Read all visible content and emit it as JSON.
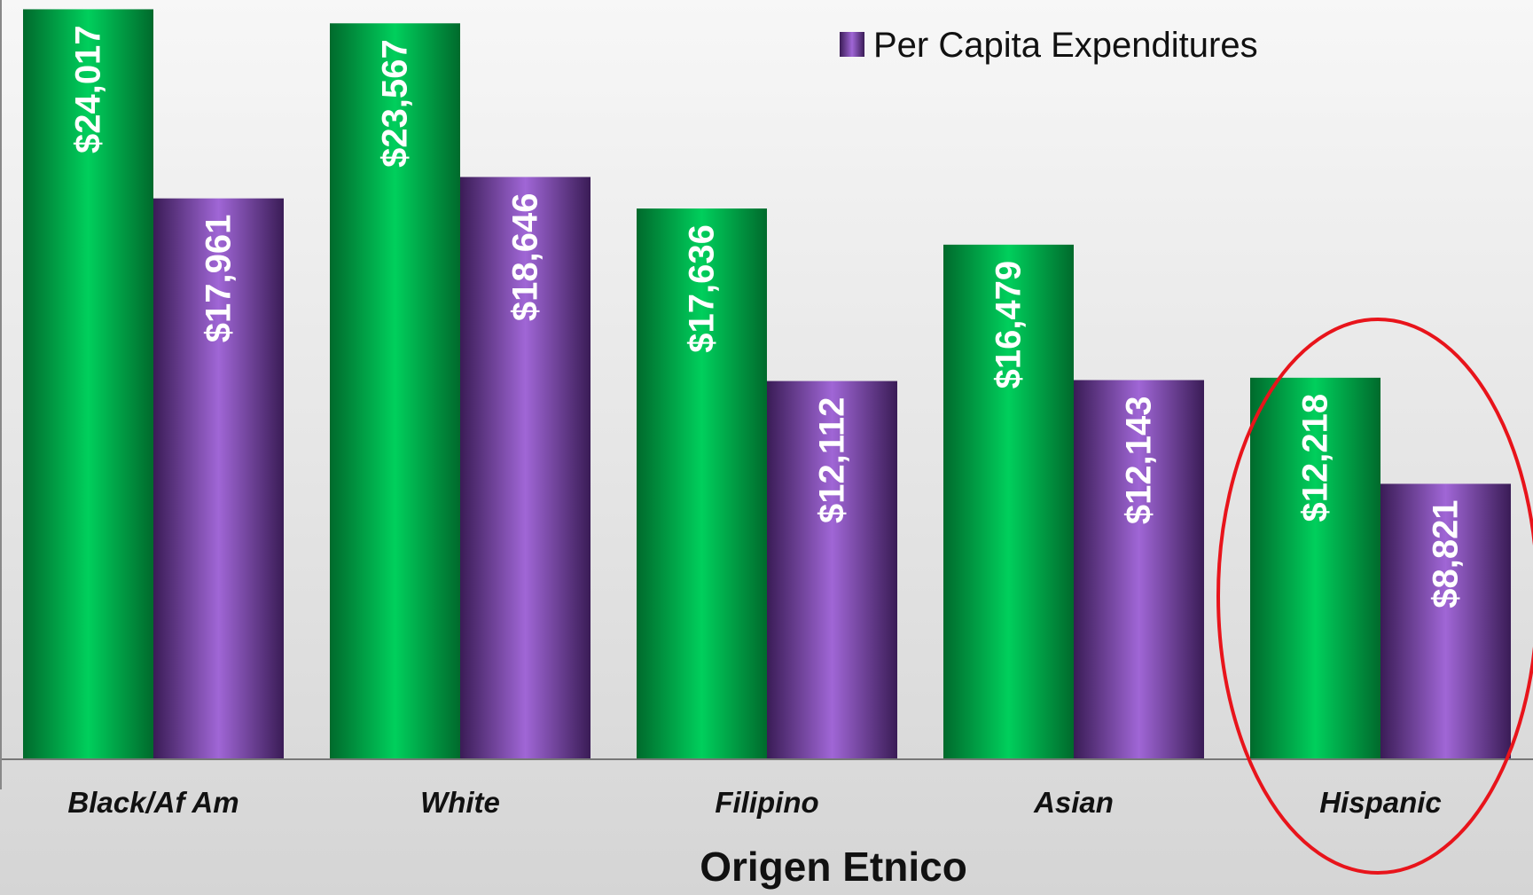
{
  "chart_data": {
    "type": "bar",
    "categories": [
      "Black/Af Am",
      "White",
      "Filipino",
      "Asian",
      "Hispanic"
    ],
    "series": [
      {
        "color": "#00c050",
        "values": [
          24017,
          23567,
          17636,
          16479,
          12218
        ]
      },
      {
        "name": "Per Capita Expenditures",
        "color": "#9a5ec8",
        "values": [
          17961,
          18646,
          12112,
          12143,
          8821
        ]
      }
    ],
    "data_labels": [
      [
        "$24,017",
        "$23,567",
        "$17,636",
        "$16,479",
        "$12,218"
      ],
      [
        "$17,961",
        "$18,646",
        "$12,112",
        "$12,143",
        "$8,821"
      ]
    ],
    "xlabel": "Origen Etnico",
    "ylabel": "",
    "ylim": [
      0,
      24200
    ],
    "grid": false,
    "legend": {
      "entries": [
        "Per Capita Expenditures"
      ],
      "position": "top-right"
    },
    "highlight": {
      "category": "Hispanic",
      "shape": "ellipse",
      "color": "#e8141b"
    }
  }
}
